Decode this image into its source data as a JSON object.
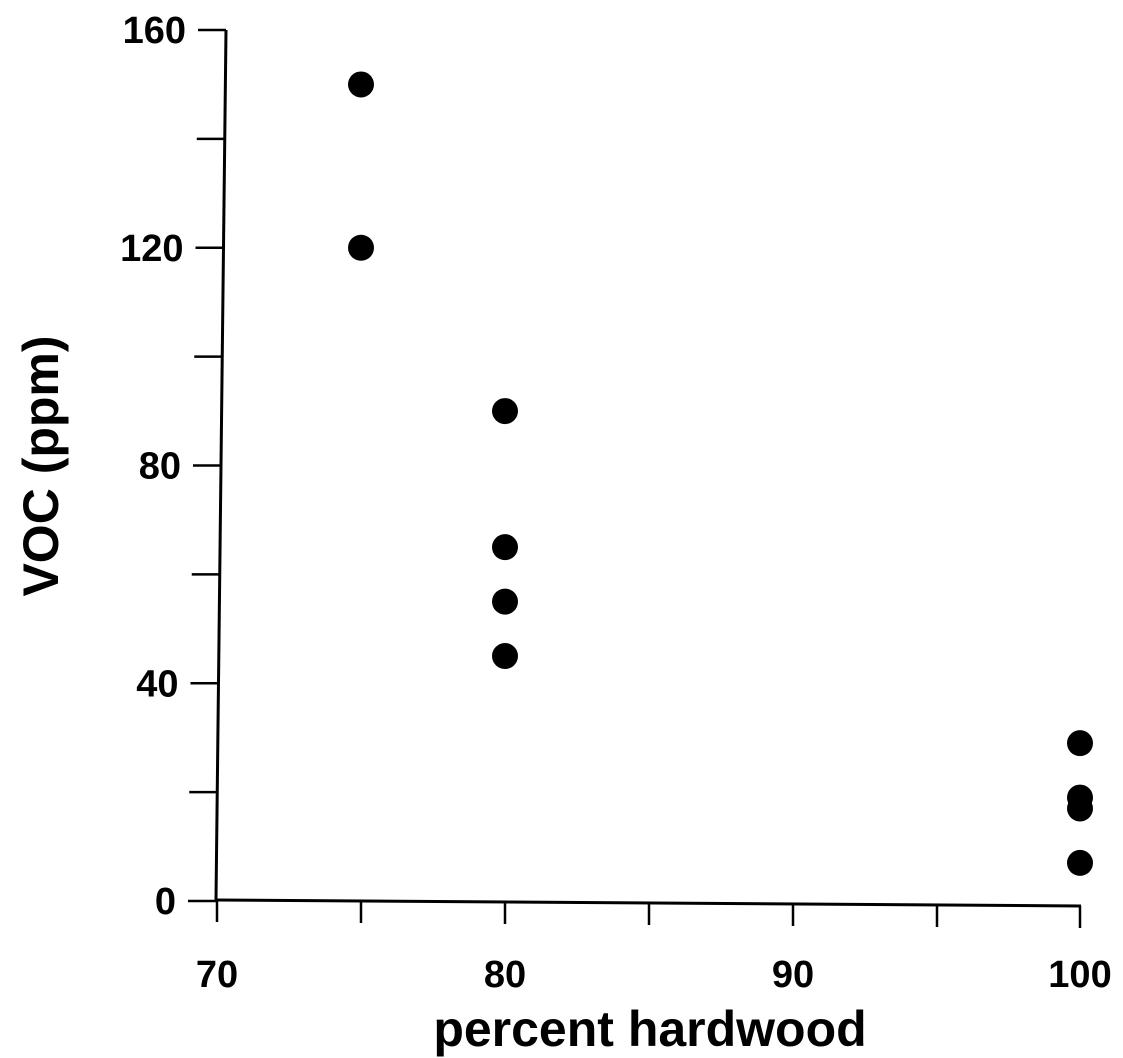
{
  "chart_data": {
    "type": "scatter",
    "title": "",
    "xlabel": "percent hardwood",
    "ylabel": "VOC (ppm)",
    "x_ticks": [
      "70",
      "80",
      "90",
      "100"
    ],
    "y_ticks": [
      "0",
      "40",
      "80",
      "120",
      "160"
    ],
    "grid": false,
    "series": [
      {
        "points": [
          {
            "x": 75,
            "y": 150
          },
          {
            "x": 75,
            "y": 120
          },
          {
            "x": 80,
            "y": 90
          },
          {
            "x": 80,
            "y": 65
          },
          {
            "x": 80,
            "y": 55
          },
          {
            "x": 80,
            "y": 45
          },
          {
            "x": 100,
            "y": 29
          },
          {
            "x": 100,
            "y": 19
          },
          {
            "x": 100,
            "y": 17
          },
          {
            "x": 100,
            "y": 7
          }
        ]
      }
    ],
    "colors": {
      "marker": "#000000",
      "axis": "#000000"
    }
  }
}
